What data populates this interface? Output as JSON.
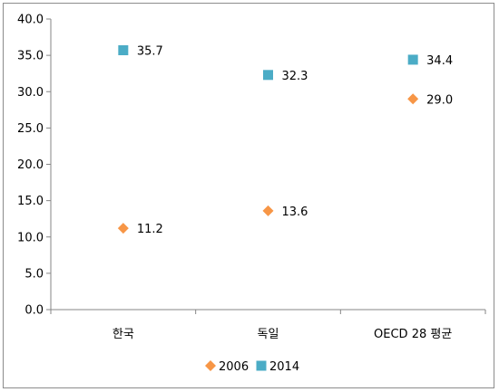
{
  "chart_data": {
    "type": "scatter",
    "categories": [
      "한국",
      "독일",
      "OECD 28 평균"
    ],
    "series": [
      {
        "name": "2006",
        "color": "#F79646",
        "marker": "diamond",
        "values": [
          11.2,
          13.6,
          29.0
        ],
        "labels": [
          "11.2",
          "13.6",
          "29.0"
        ]
      },
      {
        "name": "2014",
        "color": "#4BACC6",
        "marker": "square",
        "values": [
          35.7,
          32.3,
          34.4
        ],
        "labels": [
          "35.7",
          "32.3",
          "34.4"
        ]
      }
    ],
    "title": "",
    "xlabel": "",
    "ylabel": "",
    "ylim": [
      0,
      40
    ],
    "yticks": [
      "0.0",
      "5.0",
      "10.0",
      "15.0",
      "20.0",
      "25.0",
      "30.0",
      "35.0",
      "40.0"
    ],
    "yticks_values": [
      0,
      5,
      10,
      15,
      20,
      25,
      30,
      35,
      40
    ],
    "grid": false,
    "legend_position": "bottom"
  }
}
